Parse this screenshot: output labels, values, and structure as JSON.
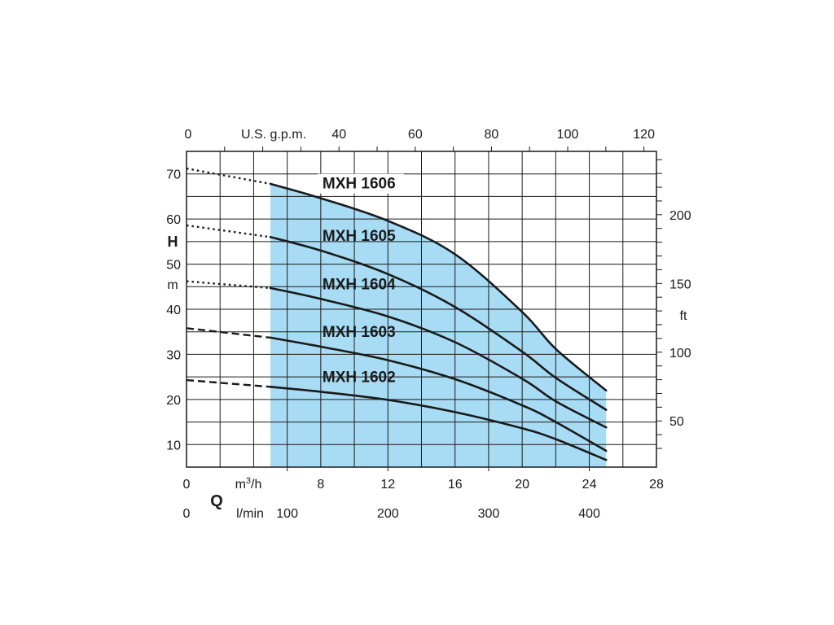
{
  "chart_data": {
    "type": "line",
    "title": "",
    "x_axis_bottom": {
      "symbol": "Q",
      "unit_label": "m³/h",
      "unit_base": "m",
      "unit_sup": "3",
      "unit_tail": "/h",
      "range": [
        0,
        28
      ],
      "ticks": [
        "0",
        "8",
        "12",
        "16",
        "20",
        "24",
        "28"
      ],
      "tick_values": [
        0,
        8,
        12,
        16,
        20,
        24,
        28
      ]
    },
    "x_axis_bottom2": {
      "unit_label": "l/min",
      "ticks": [
        "0",
        "100",
        "200",
        "300",
        "400"
      ],
      "tick_values": [
        0,
        100,
        200,
        300,
        400
      ]
    },
    "x_axis_top": {
      "unit_label": "U.S. g.p.m.",
      "ticks": [
        "0",
        "40",
        "60",
        "80",
        "100",
        "120"
      ],
      "tick_values": [
        0,
        40,
        60,
        80,
        100,
        120
      ]
    },
    "y_axis_left": {
      "symbol": "H",
      "unit_label": "m",
      "range": [
        5,
        75
      ],
      "ticks": [
        "10",
        "20",
        "30",
        "40",
        "50",
        "60",
        "70"
      ],
      "tick_values": [
        10,
        20,
        30,
        40,
        50,
        60,
        70
      ]
    },
    "y_axis_right": {
      "unit_label": "ft",
      "ticks": [
        "50",
        "100",
        "150",
        "200"
      ],
      "tick_values": [
        50,
        100,
        150,
        200
      ]
    },
    "grid": true,
    "operating_range_m3h": [
      5,
      25
    ],
    "operating_range_color": "#a8dcf4",
    "line_color": "#1a1a1a",
    "series": [
      {
        "name": "MXH 1602",
        "x": [
          5,
          8,
          12,
          16,
          20,
          22,
          25
        ],
        "y": [
          22.8,
          21.7,
          19.9,
          17.2,
          13.6,
          11.2,
          6.6
        ],
        "ext_x": [
          0,
          5
        ],
        "ext_y": [
          24.3,
          22.8
        ]
      },
      {
        "name": "MXH 1603",
        "x": [
          5,
          8,
          12,
          16,
          20,
          22,
          25
        ],
        "y": [
          33.7,
          31.7,
          28.7,
          24.5,
          18.7,
          15.0,
          8.6
        ],
        "ext_x": [
          0,
          5
        ],
        "ext_y": [
          35.8,
          33.7
        ]
      },
      {
        "name": "MXH 1604",
        "x": [
          5,
          8,
          12,
          16,
          20,
          22,
          25
        ],
        "y": [
          44.7,
          42.3,
          38.4,
          32.7,
          24.6,
          19.6,
          13.8
        ],
        "ext_x": [
          0,
          5
        ],
        "ext_y": [
          46.2,
          44.7
        ]
      },
      {
        "name": "MXH 1605",
        "x": [
          5,
          8,
          12,
          16,
          20,
          22,
          25
        ],
        "y": [
          56.0,
          53.0,
          47.8,
          40.5,
          30.6,
          24.8,
          17.7
        ],
        "ext_x": [
          0,
          5
        ],
        "ext_y": [
          58.6,
          56.0
        ]
      },
      {
        "name": "MXH 1606",
        "x": [
          5,
          8,
          12,
          16,
          20,
          22,
          25
        ],
        "y": [
          67.8,
          64.6,
          59.6,
          52.2,
          39.4,
          31.2,
          22.0
        ],
        "ext_x": [
          0,
          5
        ],
        "ext_y": [
          71.2,
          67.8
        ]
      }
    ]
  }
}
